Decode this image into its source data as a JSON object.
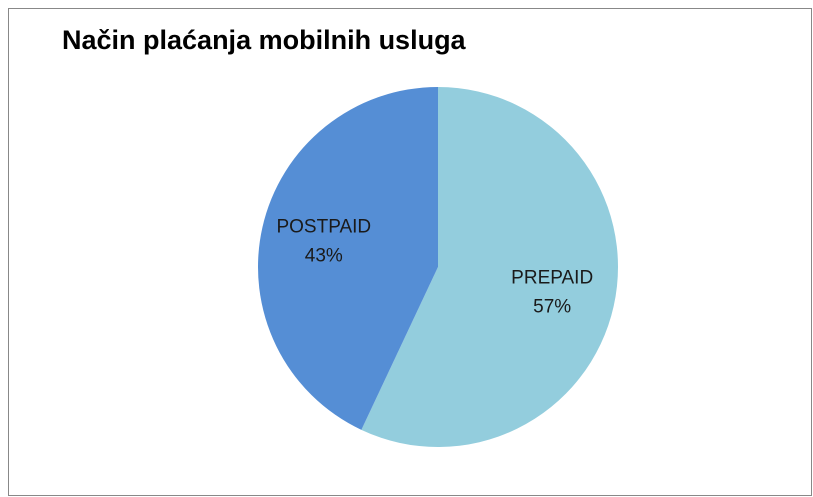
{
  "chart_data": {
    "type": "pie",
    "title": "Način plaćanja mobilnih usluga",
    "categories": [
      "PREPAID",
      "POSTPAID"
    ],
    "values": [
      57,
      43
    ],
    "value_labels": [
      "57%",
      "43%"
    ],
    "colors": [
      "#93cddd",
      "#558ed5"
    ]
  }
}
